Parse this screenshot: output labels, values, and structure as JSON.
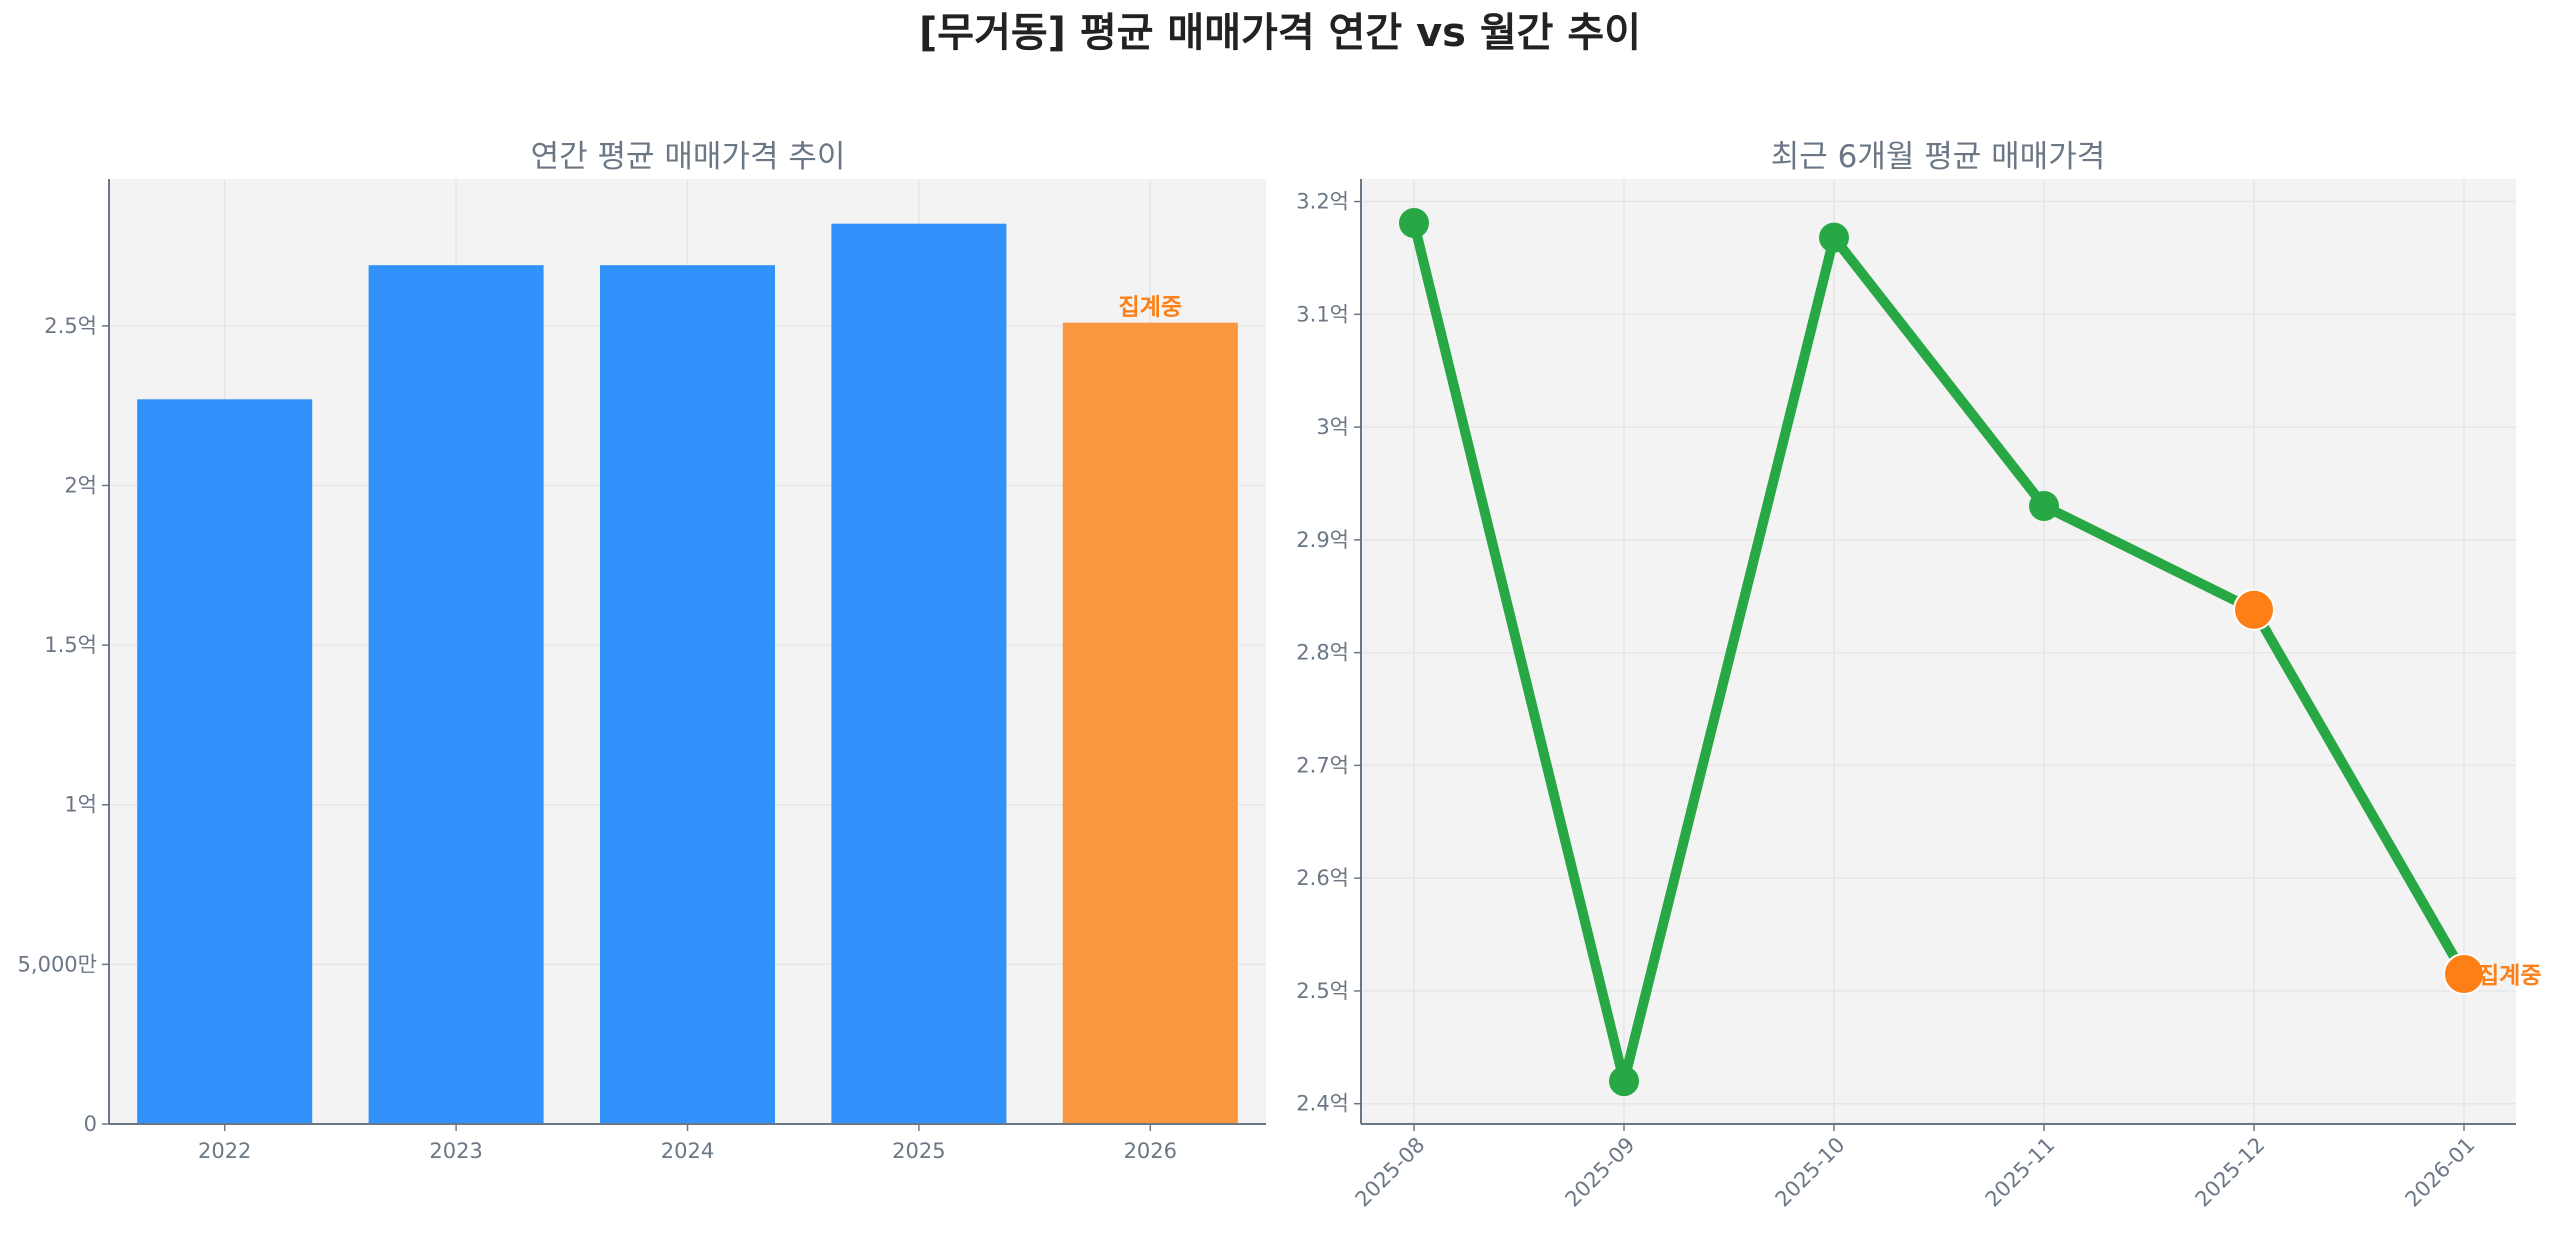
{
  "title": "[무거동] 평균 매매가격 연간 vs 월간 추이",
  "colors": {
    "bar": "#3092fa",
    "bar_partial": "#f9963f",
    "line": "#28a745",
    "partial_marker": "#fd7f15",
    "annotation": "#fd7f15",
    "plot_bg": "#f3f3f3"
  },
  "chart_data": [
    {
      "type": "bar",
      "title": "연간 평균 매매가격 추이",
      "xlabel": "",
      "ylabel": "",
      "categories": [
        "2022",
        "2023",
        "2024",
        "2025",
        "2026"
      ],
      "values": [
        2.27,
        2.69,
        2.69,
        2.82,
        2.51
      ],
      "unit": "억",
      "partial": [
        false,
        false,
        false,
        false,
        true
      ],
      "annotation": {
        "category": "2026",
        "text": "집계중"
      },
      "yticks": [
        {
          "v": 0,
          "label": "0"
        },
        {
          "v": 0.5,
          "label": "5,000만"
        },
        {
          "v": 1,
          "label": "1억"
        },
        {
          "v": 1.5,
          "label": "1.5억"
        },
        {
          "v": 2,
          "label": "2억"
        },
        {
          "v": 2.5,
          "label": "2.5억"
        }
      ],
      "ylim": [
        0,
        2.96
      ],
      "grid": true
    },
    {
      "type": "line",
      "title": "최근 6개월 평균 매매가격",
      "xlabel": "",
      "ylabel": "",
      "x": [
        "2025-08",
        "2025-09",
        "2025-10",
        "2025-11",
        "2025-12",
        "2026-01"
      ],
      "values": [
        3.181,
        2.42,
        3.168,
        2.93,
        2.838,
        2.515
      ],
      "unit": "억",
      "partial": [
        false,
        false,
        false,
        false,
        true,
        true
      ],
      "annotation": {
        "x": "2026-01",
        "text": "집계중"
      },
      "yticks": [
        {
          "v": 2.4,
          "label": "2.4억"
        },
        {
          "v": 2.5,
          "label": "2.5억"
        },
        {
          "v": 2.6,
          "label": "2.6억"
        },
        {
          "v": 2.7,
          "label": "2.7억"
        },
        {
          "v": 2.8,
          "label": "2.8억"
        },
        {
          "v": 2.9,
          "label": "2.9억"
        },
        {
          "v": 3.0,
          "label": "3억"
        },
        {
          "v": 3.1,
          "label": "3.1억"
        },
        {
          "v": 3.2,
          "label": "3.2억"
        }
      ],
      "ylim": [
        2.382,
        3.22
      ],
      "grid": true
    }
  ]
}
